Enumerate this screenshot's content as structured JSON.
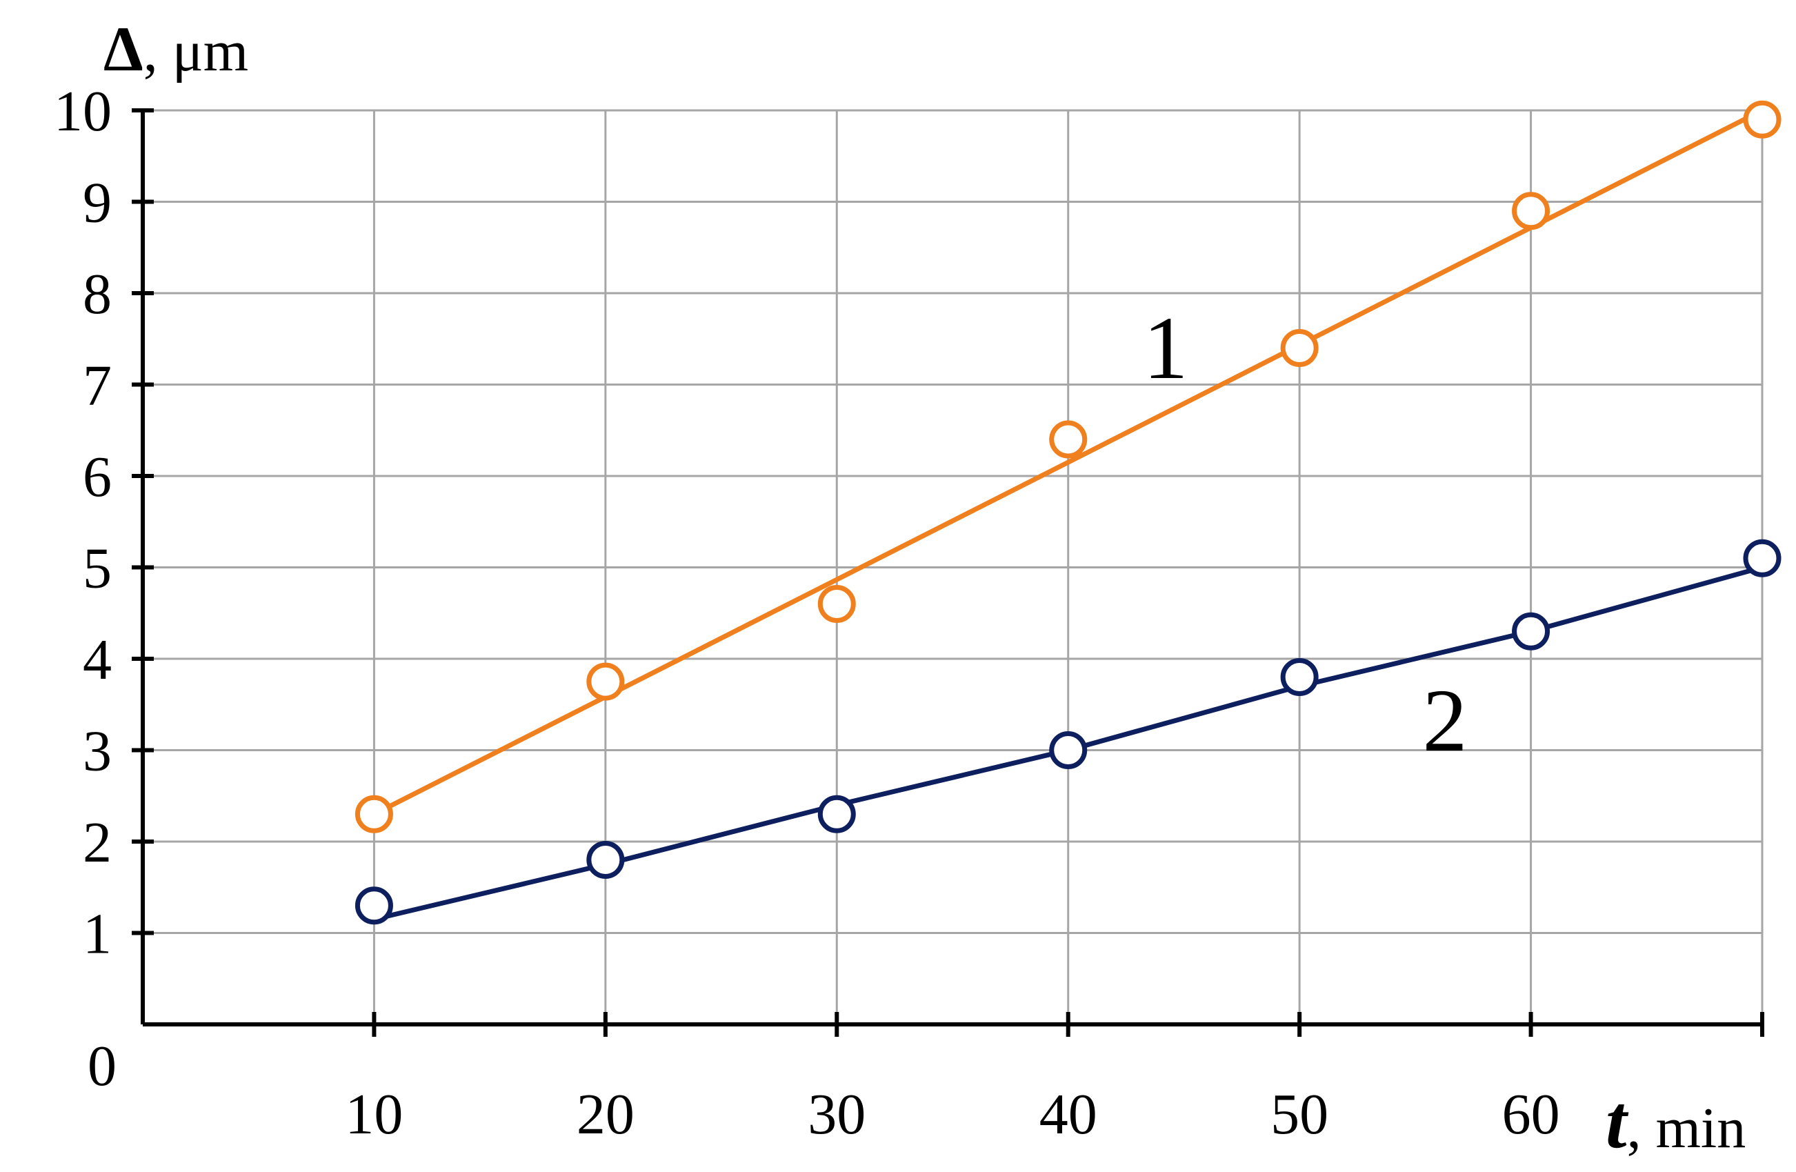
{
  "chart_data": {
    "type": "line",
    "title": "",
    "xlabel": {
      "symbol": "t",
      "unit": ", min"
    },
    "ylabel": {
      "symbol": "Δ",
      "unit": ", μm"
    },
    "origin_label": "0",
    "xlim": [
      0,
      70
    ],
    "ylim": [
      0,
      10
    ],
    "x_ticks": [
      10,
      20,
      30,
      40,
      50,
      60
    ],
    "y_ticks": [
      1,
      2,
      3,
      4,
      5,
      6,
      7,
      8,
      9,
      10
    ],
    "grid": true,
    "series": [
      {
        "label": "1",
        "color": "#f07f1e",
        "x": [
          10,
          20,
          30,
          40,
          50,
          60,
          70
        ],
        "y": [
          2.3,
          3.75,
          4.6,
          6.4,
          7.4,
          8.9,
          9.9
        ],
        "fit": [
          [
            10,
            2.3
          ],
          [
            70,
            10
          ]
        ]
      },
      {
        "label": "2",
        "color": "#0d1f5e",
        "x": [
          10,
          20,
          30,
          40,
          50,
          60,
          70
        ],
        "y": [
          1.3,
          1.8,
          2.3,
          3.0,
          3.8,
          4.3,
          5.1
        ],
        "fit": [
          [
            10,
            1.15
          ],
          [
            20,
            1.75
          ],
          [
            30,
            2.4
          ],
          [
            40,
            3.0
          ],
          [
            50,
            3.7
          ],
          [
            60,
            4.3
          ],
          [
            70,
            5.0
          ]
        ]
      }
    ]
  }
}
